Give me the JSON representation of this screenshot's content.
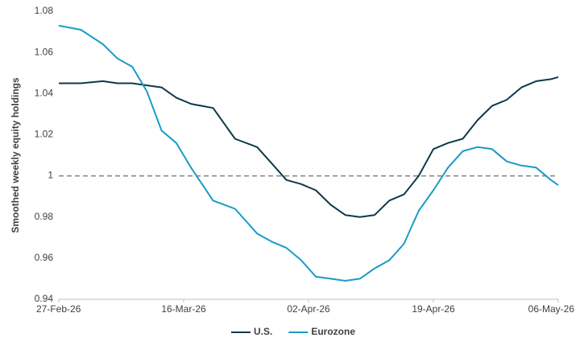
{
  "chart_data": {
    "type": "line",
    "y_label": "Smoothed weekly equity holdings",
    "x": [
      "2026-02-27",
      "2026-03-02",
      "2026-03-05",
      "2026-03-07",
      "2026-03-09",
      "2026-03-11",
      "2026-03-13",
      "2026-03-15",
      "2026-03-17",
      "2026-03-20",
      "2026-03-23",
      "2026-03-26",
      "2026-03-28",
      "2026-03-30",
      "2026-04-01",
      "2026-04-03",
      "2026-04-05",
      "2026-04-07",
      "2026-04-09",
      "2026-04-11",
      "2026-04-13",
      "2026-04-15",
      "2026-04-17",
      "2026-04-19",
      "2026-04-21",
      "2026-04-23",
      "2026-04-25",
      "2026-04-27",
      "2026-04-29",
      "2026-05-01",
      "2026-05-03",
      "2026-05-05",
      "2026-05-06"
    ],
    "series": [
      {
        "name": "U.S.",
        "color": "#0e3a4a",
        "values": [
          1.045,
          1.045,
          1.046,
          1.045,
          1.045,
          1.044,
          1.043,
          1.038,
          1.035,
          1.033,
          1.018,
          1.014,
          1.006,
          0.998,
          0.996,
          0.993,
          0.986,
          0.981,
          0.98,
          0.981,
          0.988,
          0.991,
          1.0,
          1.013,
          1.016,
          1.018,
          1.027,
          1.034,
          1.037,
          1.043,
          1.046,
          1.047,
          1.048
        ]
      },
      {
        "name": "Eurozone",
        "color": "#1a9bc6",
        "values": [
          1.073,
          1.071,
          1.064,
          1.057,
          1.053,
          1.041,
          1.022,
          1.016,
          1.004,
          0.988,
          0.984,
          0.972,
          0.968,
          0.965,
          0.959,
          0.951,
          0.95,
          0.949,
          0.95,
          0.955,
          0.959,
          0.967,
          0.983,
          0.993,
          1.004,
          1.012,
          1.014,
          1.013,
          1.007,
          1.005,
          1.004,
          0.998,
          0.9955
        ]
      }
    ],
    "xlim": [
      "2026-02-27",
      "2026-05-06"
    ],
    "xticks": [
      {
        "value": "2026-02-27",
        "label": "27-Feb-26"
      },
      {
        "value": "2026-03-16",
        "label": "16-Mar-26"
      },
      {
        "value": "2026-04-02",
        "label": "02-Apr-26"
      },
      {
        "value": "2026-04-19",
        "label": "19-Apr-26"
      },
      {
        "value": "2026-05-06",
        "label": "06-May-26"
      }
    ],
    "ylim": [
      0.94,
      1.08
    ],
    "yticks": [
      0.94,
      0.96,
      0.98,
      1,
      1.02,
      1.04,
      1.06,
      1.08
    ],
    "reference_line": 1,
    "grid": false,
    "legend": "bottom"
  }
}
